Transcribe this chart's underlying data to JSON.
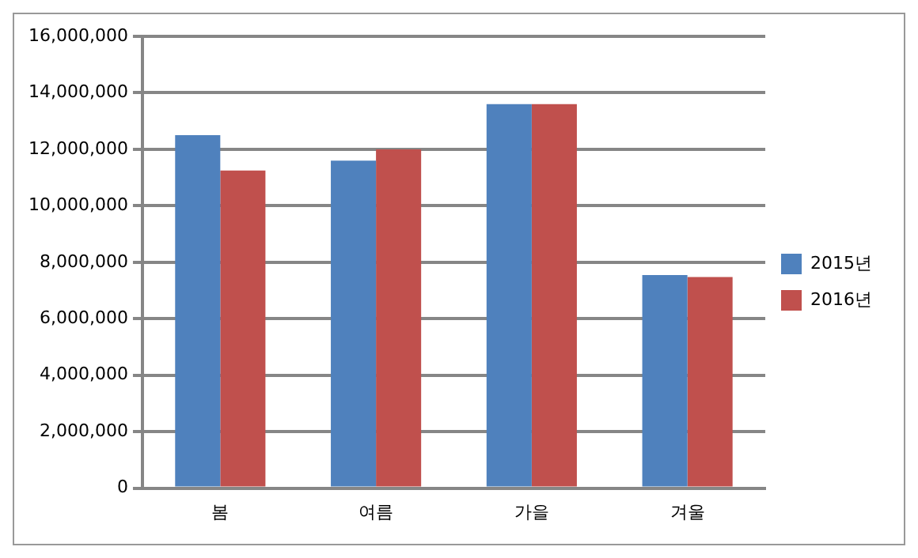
{
  "chart_data": {
    "type": "bar",
    "categories": [
      "봄",
      "여름",
      "가을",
      "겨울"
    ],
    "series": [
      {
        "name": "2015년",
        "color": "#4f81bd",
        "values": [
          12500000,
          11600000,
          13600000,
          7550000
        ]
      },
      {
        "name": "2016년",
        "color": "#c0504d",
        "values": [
          11250000,
          12000000,
          13600000,
          7480000
        ]
      }
    ],
    "ylim": [
      0,
      16000000
    ],
    "yticks": [
      0,
      {
        "value": 2000000,
        "label": "2,000,000"
      },
      {
        "value": 4000000,
        "label": "4,000,000"
      },
      {
        "value": 6000000,
        "label": "6,000,000"
      },
      {
        "value": 8000000,
        "label": "8,000,000"
      },
      {
        "value": 10000000,
        "label": "10,000,000"
      },
      {
        "value": 12000000,
        "label": "12,000,000"
      },
      {
        "value": 14000000,
        "label": "14,000,000"
      },
      {
        "value": 16000000,
        "label": "16,000,000"
      }
    ],
    "grid": "y",
    "legend": "right"
  }
}
